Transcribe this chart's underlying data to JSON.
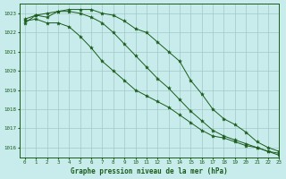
{
  "title": "Graphe pression niveau de la mer (hPa)",
  "bg_color": "#c8ecec",
  "grid_color": "#a0c8c8",
  "line_color": "#1a5c1a",
  "xlim": [
    -0.5,
    23
  ],
  "ylim": [
    1015.5,
    1023.5
  ],
  "yticks": [
    1016,
    1017,
    1018,
    1019,
    1020,
    1021,
    1022,
    1023
  ],
  "xticks": [
    0,
    1,
    2,
    3,
    4,
    5,
    6,
    7,
    8,
    9,
    10,
    11,
    12,
    13,
    14,
    15,
    16,
    17,
    18,
    19,
    20,
    21,
    22,
    23
  ],
  "series": [
    [
      1022.5,
      1022.9,
      1022.8,
      1023.1,
      1023.2,
      1023.2,
      1023.2,
      1023.0,
      1022.9,
      1022.6,
      1022.2,
      1022.0,
      1021.5,
      1021.0,
      1020.5,
      1019.5,
      1018.8,
      1018.0,
      1017.5,
      1017.2,
      1016.8,
      1016.3,
      1016.0,
      1015.8
    ],
    [
      1022.6,
      1022.7,
      1022.5,
      1022.5,
      1022.3,
      1021.8,
      1021.2,
      1020.5,
      1020.0,
      1019.5,
      1019.0,
      1018.7,
      1018.4,
      1018.1,
      1017.7,
      1017.3,
      1016.9,
      1016.6,
      1016.5,
      1016.3,
      1016.1,
      1016.0,
      1015.8,
      1015.7
    ],
    [
      1022.7,
      1022.9,
      1023.0,
      1023.1,
      1023.1,
      1023.0,
      1022.8,
      1022.5,
      1022.0,
      1021.4,
      1020.8,
      1020.2,
      1019.6,
      1019.1,
      1018.5,
      1017.9,
      1017.4,
      1016.9,
      1016.6,
      1016.4,
      1016.2,
      1016.0,
      1015.8,
      1015.6
    ]
  ]
}
